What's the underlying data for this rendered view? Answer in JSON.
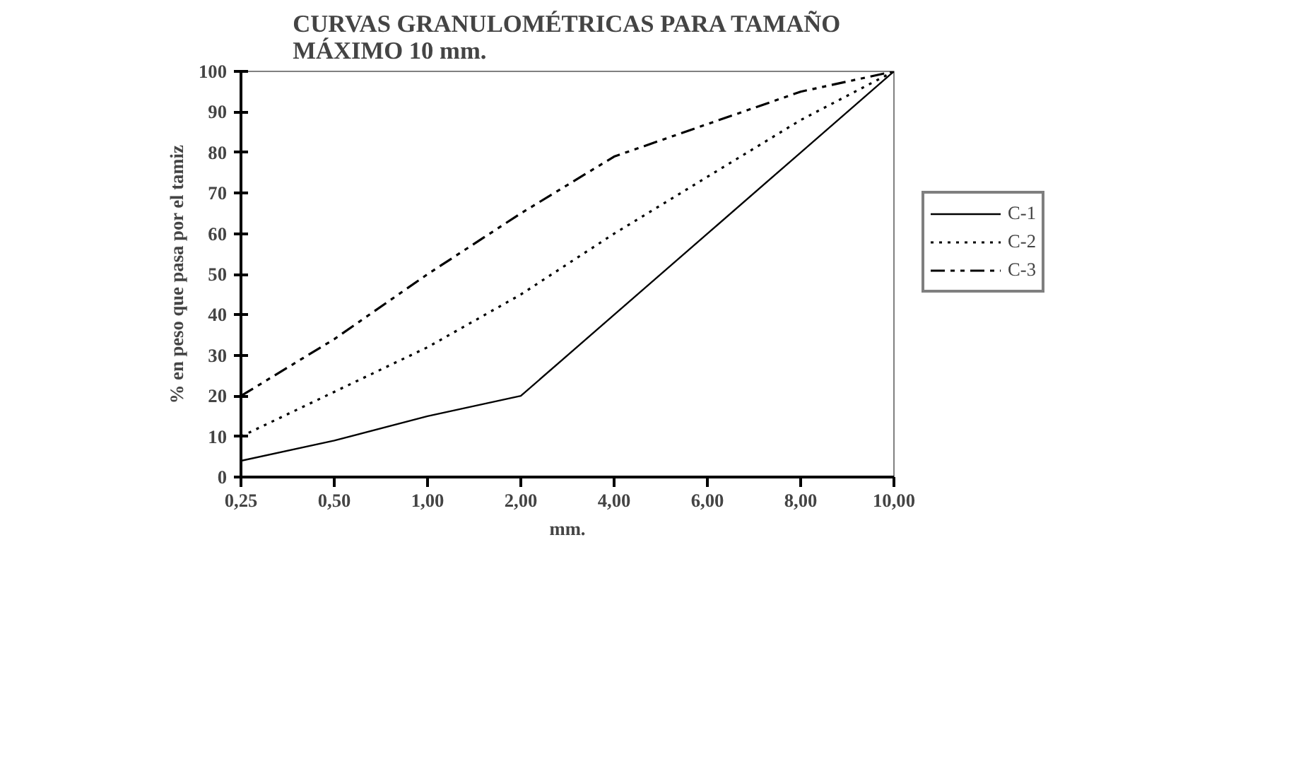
{
  "chart_data": {
    "type": "line",
    "title": "CURVAS GRANULOMÉTRICAS PARA TAMAÑO\nMÁXIMO 10 mm.",
    "xlabel": "mm.",
    "ylabel": "% en peso que pasa por el tamiz",
    "categories": [
      "0,25",
      "0,50",
      "1,00",
      "2,00",
      "4,00",
      "6,00",
      "8,00",
      "10,00"
    ],
    "ylim": [
      0,
      100
    ],
    "yticks": [
      0,
      10,
      20,
      30,
      40,
      50,
      60,
      70,
      80,
      90,
      100
    ],
    "grid": false,
    "legend": "right",
    "marker": "none",
    "series": [
      {
        "name": "C-1",
        "color": "#000000",
        "line_style": "solid",
        "values": [
          4,
          9,
          15,
          20,
          40,
          60,
          80,
          100
        ]
      },
      {
        "name": "C-2",
        "color": "#000000",
        "line_style": "dotted",
        "values": [
          10,
          21,
          32,
          45,
          60,
          74,
          88,
          100
        ]
      },
      {
        "name": "C-3",
        "color": "#000000",
        "line_style": "dashed",
        "values": [
          20,
          34,
          50,
          65,
          79,
          87,
          95,
          100
        ]
      }
    ]
  }
}
